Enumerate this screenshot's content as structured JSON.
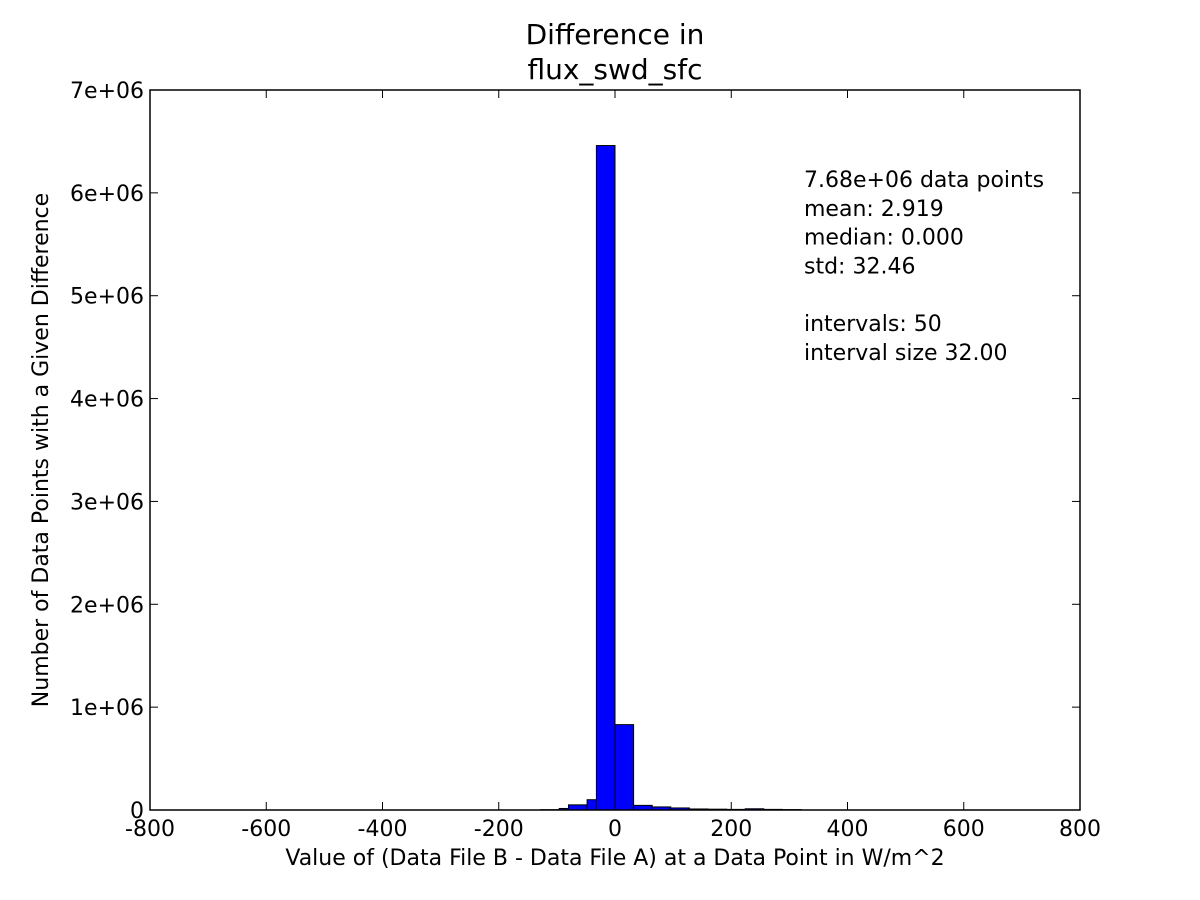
{
  "chart_data": {
    "type": "bar",
    "title": [
      "Difference in",
      "flux_swd_sfc"
    ],
    "xlabel": "Value of (Data File B - Data File A) at a Data Point in W/m^2",
    "ylabel": "Number of Data Points with a Given Difference",
    "xlim": [
      -800,
      800
    ],
    "ylim": [
      0,
      7000000
    ],
    "xticks": [
      -800,
      -600,
      -400,
      -200,
      0,
      200,
      400,
      600,
      800
    ],
    "xtick_labels": [
      "-800",
      "-600",
      "-400",
      "-200",
      "0",
      "200",
      "400",
      "600",
      "800"
    ],
    "yticks": [
      0,
      1000000,
      2000000,
      3000000,
      4000000,
      5000000,
      6000000,
      7000000
    ],
    "ytick_labels": [
      "0",
      "1e+06",
      "2e+06",
      "3e+06",
      "4e+06",
      "5e+06",
      "6e+06",
      "7e+06"
    ],
    "grid": false,
    "bar_color": "#0000ff",
    "bin_width": 32,
    "bins": [
      {
        "x0": -800,
        "count": 0
      },
      {
        "x0": -128,
        "count": 3000
      },
      {
        "x0": -96,
        "count": 15000
      },
      {
        "x0": -80,
        "count": 50000
      },
      {
        "x0": -48,
        "count": 100000
      },
      {
        "x0": -32,
        "count": 6460000
      },
      {
        "x0": 0,
        "count": 830000
      },
      {
        "x0": 32,
        "count": 45000
      },
      {
        "x0": 64,
        "count": 30000
      },
      {
        "x0": 96,
        "count": 20000
      },
      {
        "x0": 128,
        "count": 10000
      },
      {
        "x0": 160,
        "count": 8000
      },
      {
        "x0": 192,
        "count": 6000
      },
      {
        "x0": 224,
        "count": 12000
      },
      {
        "x0": 256,
        "count": 6000
      },
      {
        "x0": 288,
        "count": 4000
      }
    ],
    "annotations": [
      "7.68e+06 data points",
      "mean: 2.919",
      "median: 0.000",
      "std: 32.46",
      "",
      "intervals: 50",
      "interval size 32.00"
    ]
  }
}
